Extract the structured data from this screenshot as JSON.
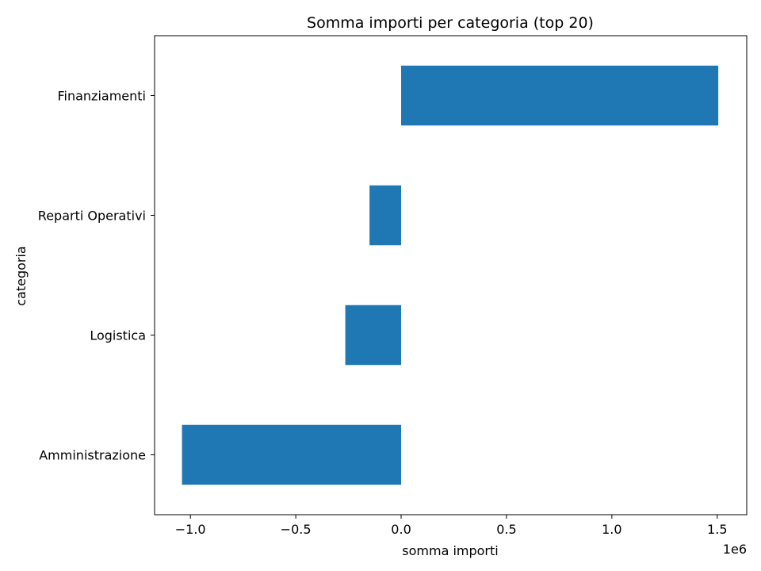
{
  "chart_data": {
    "type": "bar",
    "orientation": "horizontal",
    "title": "Somma importi per categoria (top 20)",
    "xlabel": "somma importi",
    "ylabel": "categoria",
    "offset_text": "1e6",
    "categories": [
      "Amministrazione",
      "Logistica",
      "Reparti Operativi",
      "Finanziamenti"
    ],
    "values": [
      -1040000,
      -265000,
      -150000,
      1505000
    ],
    "xlim": [
      -1170000,
      1640000
    ],
    "xticks": [
      -1000000,
      -500000,
      0,
      500000,
      1000000,
      1500000
    ],
    "xtick_labels": [
      "−1.0",
      "−0.5",
      "0.0",
      "0.5",
      "1.0",
      "1.5"
    ],
    "bar_color": "#1f77b4",
    "grid": false,
    "legend": "none"
  }
}
